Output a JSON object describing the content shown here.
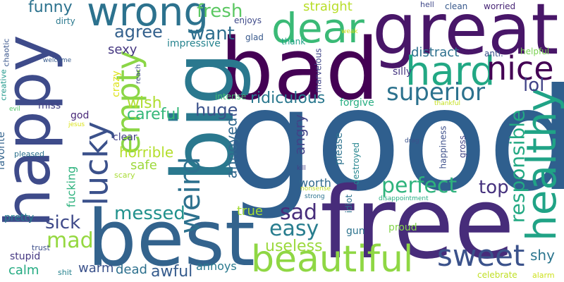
{
  "words": [
    {
      "text": "good",
      "color": "#2f5f8e",
      "vertical": false
    },
    {
      "text": "bad",
      "color": "#440154",
      "vertical": false
    },
    {
      "text": "great",
      "color": "#481668",
      "vertical": false
    },
    {
      "text": "free",
      "color": "#472c7a",
      "vertical": false
    },
    {
      "text": "big",
      "color": "#2a788e",
      "vertical": true
    },
    {
      "text": "happy",
      "color": "#3e4b8a",
      "vertical": true
    },
    {
      "text": "best",
      "color": "#33638d",
      "vertical": false
    },
    {
      "text": "healthy",
      "color": "#20a386",
      "vertical": true
    },
    {
      "text": "beautiful",
      "color": "#8fd744",
      "vertical": false
    },
    {
      "text": "wrong",
      "color": "#2c728e",
      "vertical": false
    },
    {
      "text": "dear",
      "color": "#3aba76",
      "vertical": false
    },
    {
      "text": "hard",
      "color": "#22a884",
      "vertical": false
    },
    {
      "text": "nice",
      "color": "#440154",
      "vertical": false
    },
    {
      "text": "empty",
      "color": "#8bd646",
      "vertical": true
    },
    {
      "text": "lucky",
      "color": "#3b518b",
      "vertical": true
    },
    {
      "text": "weird",
      "color": "#2d718e",
      "vertical": true
    },
    {
      "text": "superior",
      "color": "#2c728e",
      "vertical": false
    },
    {
      "text": "responsible",
      "color": "#23a983",
      "vertical": true
    },
    {
      "text": "sweet",
      "color": "#3b528b",
      "vertical": false
    },
    {
      "text": "perfect",
      "color": "#2eb37c",
      "vertical": false
    },
    {
      "text": "easy",
      "color": "#287d8e",
      "vertical": false
    },
    {
      "text": "sad",
      "color": "#472d7b",
      "vertical": false
    },
    {
      "text": "mad",
      "color": "#95d840",
      "vertical": false
    },
    {
      "text": "messed",
      "color": "#21918c",
      "vertical": false
    },
    {
      "text": "huge",
      "color": "#3b518b",
      "vertical": false
    },
    {
      "text": "fresh",
      "color": "#5cc863",
      "vertical": false
    },
    {
      "text": "want",
      "color": "#2e6e8e",
      "vertical": false
    },
    {
      "text": "agree",
      "color": "#34618d",
      "vertical": false
    },
    {
      "text": "lol",
      "color": "#404387",
      "vertical": false
    },
    {
      "text": "ridiculous",
      "color": "#2a788e",
      "vertical": false
    },
    {
      "text": "sick",
      "color": "#3e4989",
      "vertical": false
    },
    {
      "text": "top",
      "color": "#46327e",
      "vertical": false
    },
    {
      "text": "useless",
      "color": "#9bd93c",
      "vertical": false
    },
    {
      "text": "awful",
      "color": "#365c8d",
      "vertical": false
    },
    {
      "text": "wish",
      "color": "#b0dd2f",
      "vertical": false
    },
    {
      "text": "funny",
      "color": "#2c728e",
      "vertical": false
    },
    {
      "text": "careful",
      "color": "#35b779",
      "vertical": false
    },
    {
      "text": "horrible",
      "color": "#b4de2c",
      "vertical": false
    },
    {
      "text": "straight",
      "color": "#b8de29",
      "vertical": false
    },
    {
      "text": "angry",
      "color": "#414487",
      "vertical": true
    },
    {
      "text": "annoyed",
      "color": "#31688e",
      "vertical": true
    },
    {
      "text": "distract",
      "color": "#2d708e",
      "vertical": false
    },
    {
      "text": "shy",
      "color": "#2b758e",
      "vertical": false
    },
    {
      "text": "warm",
      "color": "#3b528b",
      "vertical": false
    },
    {
      "text": "dead",
      "color": "#2d708e",
      "vertical": false
    },
    {
      "text": "safe",
      "color": "#9dd93b",
      "vertical": false
    },
    {
      "text": "sexy",
      "color": "#453781",
      "vertical": false
    },
    {
      "text": "true",
      "color": "#a5db36",
      "vertical": false
    },
    {
      "text": "annoys",
      "color": "#29798e",
      "vertical": false
    },
    {
      "text": "calm",
      "color": "#25ab82",
      "vertical": false
    },
    {
      "text": "fucking",
      "color": "#2db27d",
      "vertical": true
    },
    {
      "text": "worth",
      "color": "#306a8e",
      "vertical": false
    },
    {
      "text": "crazy",
      "color": "#dde318",
      "vertical": true
    },
    {
      "text": "forgive",
      "color": "#26ad81",
      "vertical": false
    },
    {
      "text": "god",
      "color": "#482878",
      "vertical": false
    },
    {
      "text": "clear",
      "color": "#424086",
      "vertical": false
    },
    {
      "text": "favorite",
      "color": "#33638d",
      "vertical": true
    },
    {
      "text": "please",
      "color": "#2c728e",
      "vertical": true
    },
    {
      "text": "gun",
      "color": "#2c738e",
      "vertical": false
    },
    {
      "text": "proud",
      "color": "#84d44b",
      "vertical": false
    },
    {
      "text": "stupid",
      "color": "#453882",
      "vertical": false
    },
    {
      "text": "pretty",
      "color": "#287c8e",
      "vertical": false
    },
    {
      "text": "miss",
      "color": "#424186",
      "vertical": false
    },
    {
      "text": "marvelous",
      "color": "#404588",
      "vertical": true
    },
    {
      "text": "impressive",
      "color": "#25838e",
      "vertical": false
    },
    {
      "text": "enjoys",
      "color": "#3e4989",
      "vertical": false
    },
    {
      "text": "glad",
      "color": "#38598c",
      "vertical": false
    },
    {
      "text": "thank",
      "color": "#20a386",
      "vertical": false
    },
    {
      "text": "silly",
      "color": "#453581",
      "vertical": false
    },
    {
      "text": "intense",
      "color": "#40bd72",
      "vertical": false
    },
    {
      "text": "happiness",
      "color": "#3c4f8a",
      "vertical": true
    },
    {
      "text": "destroyed",
      "color": "#25858e",
      "vertical": true
    },
    {
      "text": "idiot",
      "color": "#2c738e",
      "vertical": true
    },
    {
      "text": "gross",
      "color": "#414487",
      "vertical": true
    },
    {
      "text": "helpful",
      "color": "#7ad151",
      "vertical": false
    },
    {
      "text": "anti.",
      "color": "#3b528b",
      "vertical": false
    },
    {
      "text": "clean",
      "color": "#38598c",
      "vertical": false
    },
    {
      "text": "worried",
      "color": "#482576",
      "vertical": false
    },
    {
      "text": "hell",
      "color": "#3f4889",
      "vertical": false
    },
    {
      "text": "dirty",
      "color": "#2a788e",
      "vertical": false
    },
    {
      "text": "chaotic",
      "color": "#39558c",
      "vertical": true
    },
    {
      "text": "creative",
      "color": "#1f988b",
      "vertical": true
    },
    {
      "text": "trust",
      "color": "#3d4e8a",
      "vertical": false
    },
    {
      "text": "shit",
      "color": "#26828e",
      "vertical": false
    },
    {
      "text": "scary",
      "color": "#a8db34",
      "vertical": false
    },
    {
      "text": "pleased",
      "color": "#2c718e",
      "vertical": false
    },
    {
      "text": "reach",
      "color": "#3e4a89",
      "vertical": true
    },
    {
      "text": "kill",
      "color": "#433e85",
      "vertical": false
    },
    {
      "text": "drag",
      "color": "#3b528b",
      "vertical": false
    },
    {
      "text": "strong",
      "color": "#2c738e",
      "vertical": false
    },
    {
      "text": "nonsense",
      "color": "#c2df23",
      "vertical": false
    },
    {
      "text": "disappointment",
      "color": "#26ad81",
      "vertical": false
    },
    {
      "text": "alarm",
      "color": "#cde11d",
      "vertical": false
    },
    {
      "text": "celebrate",
      "color": "#c0df25",
      "vertical": false
    },
    {
      "text": "welcome",
      "color": "#375a8c",
      "vertical": false
    },
    {
      "text": "evil",
      "color": "#50c46a",
      "vertical": false
    },
    {
      "text": "jesus",
      "color": "#dae319",
      "vertical": false
    },
    {
      "text": "weak",
      "color": "#d0e11c",
      "vertical": false
    },
    {
      "text": "thankful",
      "color": "#c5e021",
      "vertical": false
    }
  ]
}
